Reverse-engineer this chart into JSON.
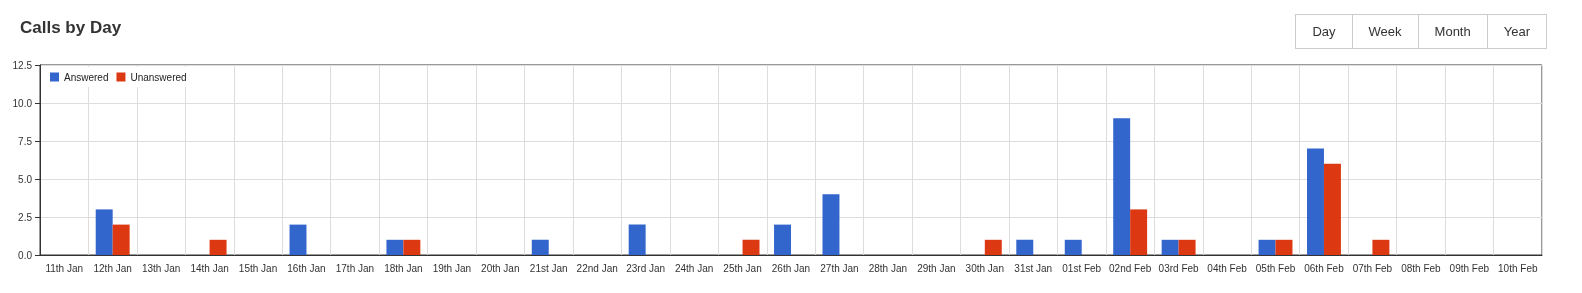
{
  "chart_data": {
    "type": "bar",
    "title": "Calls by Day",
    "annotations": [
      "Day",
      "Week",
      "Month",
      "Year"
    ],
    "categories": [
      "11th Jan",
      "12th Jan",
      "13th Jan",
      "14th Jan",
      "15th Jan",
      "16th Jan",
      "17th Jan",
      "18th Jan",
      "19th Jan",
      "20th Jan",
      "21st Jan",
      "22nd Jan",
      "23rd Jan",
      "24th Jan",
      "25th Jan",
      "26th Jan",
      "27th Jan",
      "28th Jan",
      "29th Jan",
      "30th Jan",
      "31st Jan",
      "01st Feb",
      "02nd Feb",
      "03rd Feb",
      "04th Feb",
      "05th Feb",
      "06th Feb",
      "07th Feb",
      "08th Feb",
      "09th Feb",
      "10th Feb"
    ],
    "series": [
      {
        "name": "Answered",
        "color": "#3366cc",
        "values": [
          0,
          3,
          0,
          0,
          0,
          2,
          0,
          1,
          0,
          0,
          1,
          0,
          2,
          0,
          0,
          2,
          4,
          0,
          0,
          0,
          1,
          1,
          9,
          1,
          0,
          1,
          7,
          0,
          0,
          0,
          0
        ]
      },
      {
        "name": "Unanswered",
        "color": "#dc3912",
        "values": [
          0,
          2,
          0,
          1,
          0,
          0,
          0,
          1,
          0,
          0,
          0,
          0,
          0,
          0,
          1,
          0,
          0,
          0,
          0,
          1,
          0,
          0,
          3,
          1,
          0,
          1,
          6,
          1,
          0,
          0,
          0
        ]
      }
    ],
    "ylim": [
      0,
      12.5
    ],
    "yticks": [
      {
        "value": 0,
        "label": "0.0"
      },
      2.5,
      {
        "value": 5,
        "label": "5.0"
      },
      7.5,
      {
        "value": 10,
        "label": "10.0"
      },
      12.5
    ],
    "grid": true,
    "legend": "top left"
  }
}
